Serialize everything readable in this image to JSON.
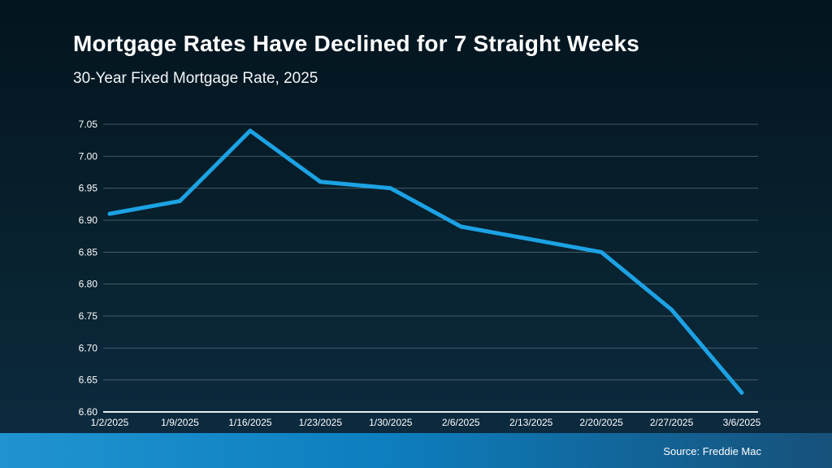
{
  "header": {
    "title": "Mortgage Rates Have Declined for 7 Straight Weeks",
    "subtitle": "30-Year Fixed Mortgage Rate, 2025"
  },
  "footer": {
    "source": "Source: Freddie Mac"
  },
  "colors": {
    "background_top": "#03141e",
    "background_mid": "#08222f",
    "background_bottom": "#0d2c42",
    "line": "#1ca2e4",
    "grid": "#93a5ae",
    "axis": "#e8eef1",
    "tick_text": "#ffffff",
    "band_left": "#2093d0",
    "band_mid": "#0d7fc0",
    "band_right": "#16517a"
  },
  "chart_data": {
    "type": "line",
    "title": "Mortgage Rates Have Declined for 7 Straight Weeks",
    "subtitle": "30-Year Fixed Mortgage Rate, 2025",
    "series_name": "30-Year Fixed Mortgage Rate",
    "x": [
      "1/2/2025",
      "1/9/2025",
      "1/16/2025",
      "1/23/2025",
      "1/30/2025",
      "2/6/2025",
      "2/13/2025",
      "2/20/2025",
      "2/27/2025",
      "3/6/2025"
    ],
    "values": [
      6.91,
      6.93,
      7.04,
      6.96,
      6.95,
      6.89,
      6.87,
      6.85,
      6.76,
      6.63
    ],
    "ylim": [
      6.6,
      7.05
    ],
    "yticks": [
      "7.05",
      "7.00",
      "6.95",
      "6.90",
      "6.85",
      "6.80",
      "6.75",
      "6.70",
      "6.65",
      "6.60"
    ],
    "grid": true,
    "legend": false,
    "source": "Source: Freddie Mac"
  }
}
